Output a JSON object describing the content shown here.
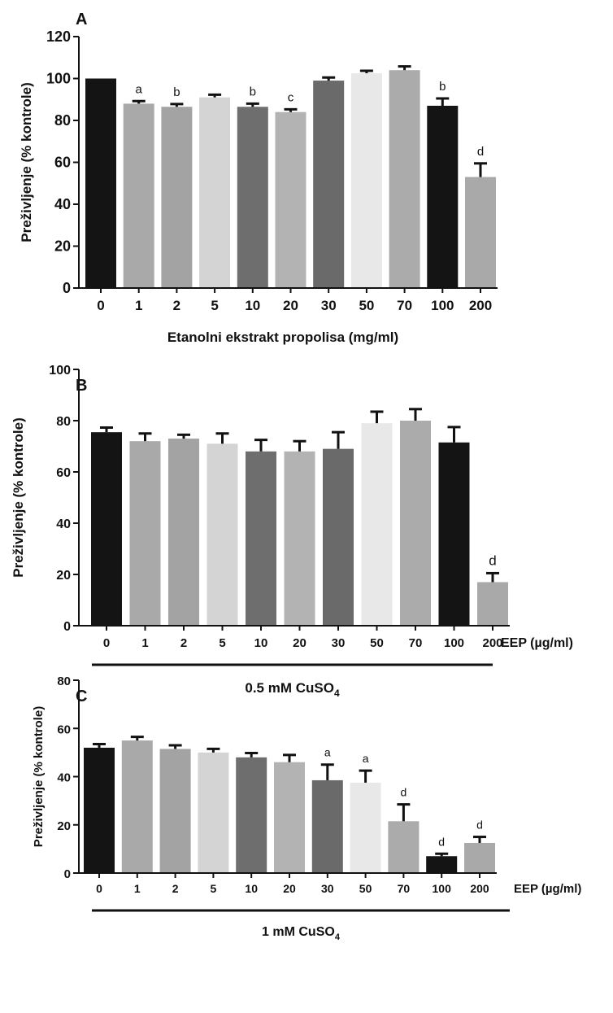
{
  "chart_data": [
    {
      "panel": "A",
      "type": "bar",
      "categories": [
        "0",
        "1",
        "2",
        "5",
        "10",
        "20",
        "30",
        "50",
        "70",
        "100",
        "200"
      ],
      "values": [
        100,
        88,
        86.5,
        91,
        86.5,
        84,
        99,
        102.5,
        104,
        87,
        53
      ],
      "errors": [
        0,
        1.2,
        1.3,
        1.3,
        1.5,
        1.3,
        1.5,
        1.2,
        1.8,
        3.5,
        6.5
      ],
      "letters": [
        "",
        "a",
        "b",
        "",
        "b",
        "c",
        "",
        "",
        "",
        "b",
        "d"
      ],
      "colors": [
        "#141414",
        "#a9a9a9",
        "#a3a3a3",
        "#d4d4d4",
        "#6e6e6e",
        "#b3b3b3",
        "#6a6a6a",
        "#e8e8e8",
        "#ababab",
        "#141414",
        "#a9a9a9"
      ],
      "ylabel": "Preživljenje (% kontrole)",
      "xlabel": "Etanolni ekstrakt propolisa (mg/ml)",
      "yticks": [
        0,
        20,
        40,
        60,
        80,
        100,
        120
      ],
      "ylim": [
        0,
        120
      ]
    },
    {
      "panel": "B",
      "type": "bar",
      "categories": [
        "0",
        "1",
        "2",
        "5",
        "10",
        "20",
        "30",
        "50",
        "70",
        "100",
        "200"
      ],
      "values": [
        75.5,
        72,
        73,
        71,
        68,
        68,
        69,
        79,
        80,
        71.5,
        17
      ],
      "errors": [
        1.8,
        3,
        1.5,
        4,
        4.5,
        4,
        6.5,
        4.5,
        4.5,
        6,
        3.5
      ],
      "letters": [
        "",
        "",
        "",
        "",
        "",
        "",
        "",
        "",
        "",
        "",
        "d"
      ],
      "colors": [
        "#141414",
        "#a9a9a9",
        "#a3a3a3",
        "#d4d4d4",
        "#6e6e6e",
        "#b3b3b3",
        "#6a6a6a",
        "#e8e8e8",
        "#ababab",
        "#141414",
        "#a9a9a9"
      ],
      "ylabel": "Preživljenje (% kontrole)",
      "axis_unit": "EEP (µg/ml)",
      "treatment_label": "0.5 mM CuSO",
      "treatment_sub": "4",
      "yticks": [
        0,
        20,
        40,
        60,
        80,
        100
      ],
      "ylim": [
        0,
        100
      ]
    },
    {
      "panel": "C",
      "type": "bar",
      "categories": [
        "0",
        "1",
        "2",
        "5",
        "10",
        "20",
        "30",
        "50",
        "70",
        "100",
        "200"
      ],
      "values": [
        52,
        55,
        51.5,
        50,
        48,
        46,
        38.5,
        37.5,
        21.5,
        7,
        12.5
      ],
      "errors": [
        1.5,
        1.5,
        1.5,
        1.5,
        1.8,
        3,
        6.5,
        5,
        7,
        1,
        2.5
      ],
      "letters": [
        "",
        "",
        "",
        "",
        "",
        "",
        "a",
        "a",
        "d",
        "d",
        "d"
      ],
      "colors": [
        "#141414",
        "#a9a9a9",
        "#a3a3a3",
        "#d4d4d4",
        "#6e6e6e",
        "#b3b3b3",
        "#6a6a6a",
        "#e8e8e8",
        "#ababab",
        "#141414",
        "#a9a9a9"
      ],
      "ylabel": "Preživljenje (% kontrole)",
      "axis_unit": "EEP (µg/ml)",
      "treatment_label": "1 mM CuSO",
      "treatment_sub": "4",
      "yticks": [
        0,
        20,
        40,
        60,
        80
      ],
      "ylim": [
        0,
        80
      ]
    }
  ]
}
